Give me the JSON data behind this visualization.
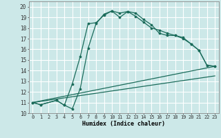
{
  "xlabel": "Humidex (Indice chaleur)",
  "bg_color": "#cce8e8",
  "grid_color": "#ffffff",
  "line_color": "#1a6b5a",
  "xlim": [
    -0.5,
    23.5
  ],
  "ylim": [
    10,
    20.5
  ],
  "yticks": [
    10,
    11,
    12,
    13,
    14,
    15,
    16,
    17,
    18,
    19,
    20
  ],
  "xticks": [
    0,
    1,
    2,
    3,
    4,
    5,
    6,
    7,
    8,
    9,
    10,
    11,
    12,
    13,
    14,
    15,
    16,
    17,
    18,
    19,
    20,
    21,
    22,
    23
  ],
  "curve1_x": [
    0,
    1,
    3,
    4,
    5,
    6,
    7,
    8,
    9,
    10,
    11,
    12,
    13,
    14,
    15,
    16,
    17,
    18,
    19,
    20,
    21,
    22,
    23
  ],
  "curve1_y": [
    11.0,
    10.8,
    11.2,
    10.75,
    10.4,
    12.3,
    16.1,
    18.4,
    19.3,
    19.6,
    19.4,
    19.55,
    19.4,
    18.8,
    18.3,
    17.5,
    17.3,
    17.3,
    17.1,
    16.5,
    15.9,
    14.5,
    14.4
  ],
  "curve2_x": [
    0,
    1,
    3,
    4,
    5,
    6,
    7,
    8,
    9,
    10,
    11,
    12,
    13,
    14,
    15,
    16,
    17,
    18,
    19,
    20,
    21,
    22,
    23
  ],
  "curve2_y": [
    11.0,
    10.8,
    11.2,
    10.75,
    12.75,
    15.3,
    18.4,
    18.5,
    19.2,
    19.6,
    19.0,
    19.55,
    19.1,
    18.55,
    18.0,
    17.8,
    17.5,
    17.3,
    17.0,
    16.5,
    15.9,
    14.5,
    14.4
  ],
  "line3_x": [
    0,
    23
  ],
  "line3_y": [
    11.0,
    13.5
  ],
  "line4_x": [
    0,
    23
  ],
  "line4_y": [
    11.0,
    14.4
  ]
}
